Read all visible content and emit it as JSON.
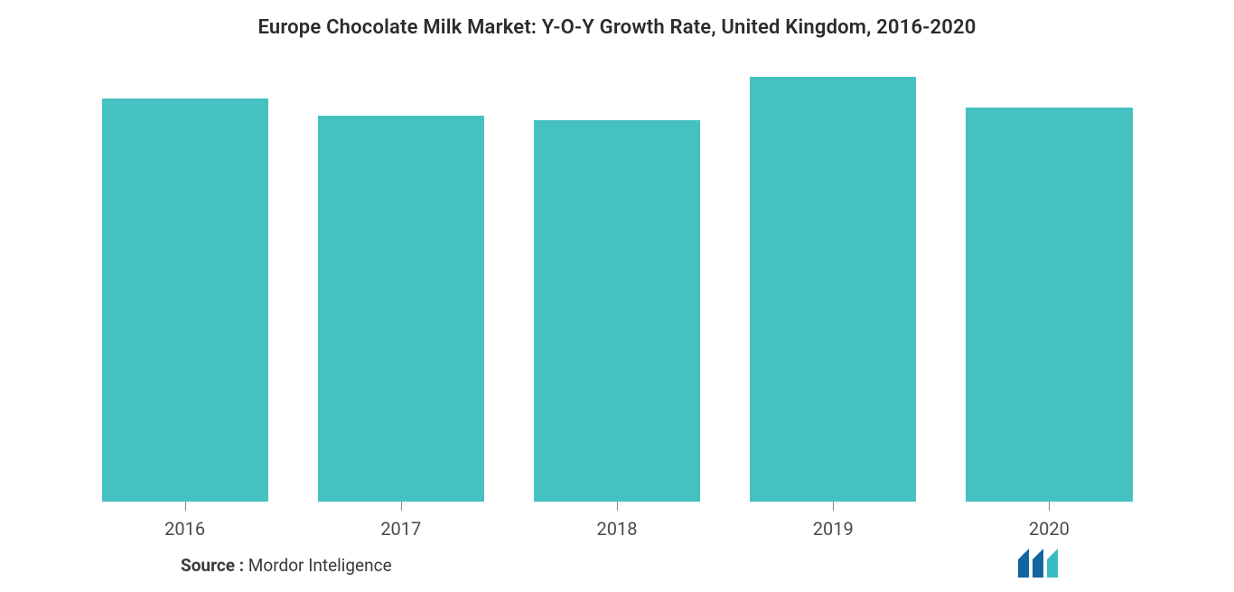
{
  "chart": {
    "type": "bar",
    "title": "Europe Chocolate Milk Market: Y-O-Y Growth Rate, United Kingdom, 2016-2020",
    "title_fontsize": 22,
    "title_color": "#2b2b2b",
    "categories": [
      "2016",
      "2017",
      "2018",
      "2019",
      "2020"
    ],
    "values": [
      92,
      88,
      87,
      97,
      90
    ],
    "ylim": [
      0,
      100
    ],
    "bar_color": "#45c1c2",
    "bar_width_pct": 77,
    "background_color": "#ffffff",
    "xlabel_fontsize": 20,
    "xlabel_color": "#4a4a4a",
    "tick_color": "#888888"
  },
  "source": {
    "label": "Source :",
    "text": " Mordor Inteligence",
    "fontsize": 19,
    "color": "#3a3a3a"
  },
  "logo": {
    "bar_color": "#12659f",
    "accent_color": "#38bcc1"
  }
}
